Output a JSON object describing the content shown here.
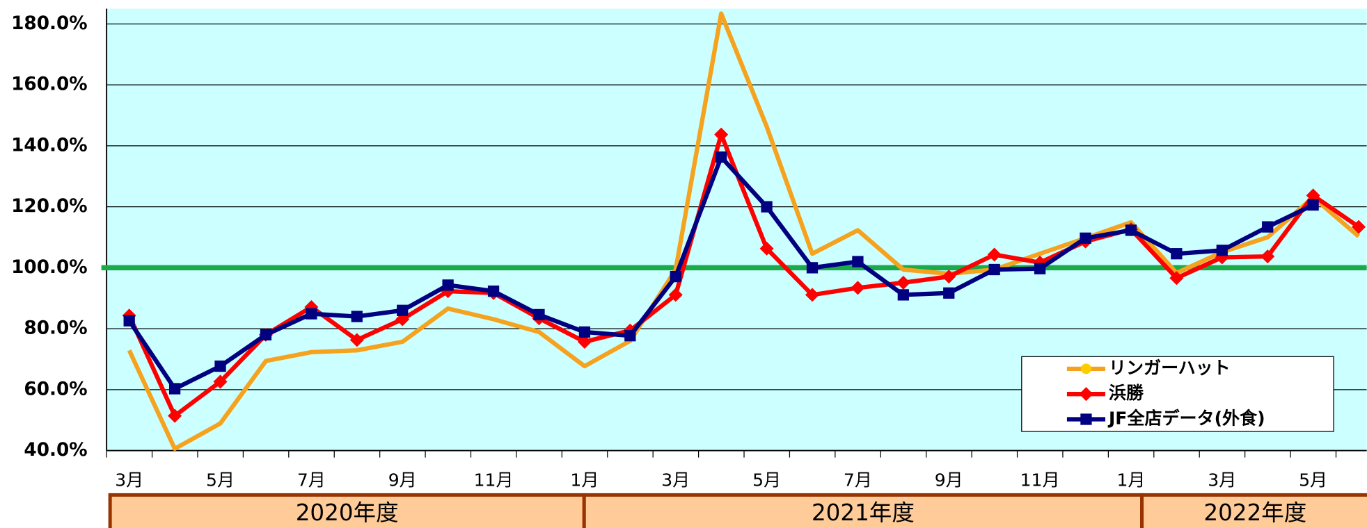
{
  "chart_data": {
    "type": "line",
    "categories": [
      "3月",
      null,
      "5月",
      null,
      "7月",
      null,
      "9月",
      null,
      "11月",
      null,
      "1月",
      null,
      "3月",
      null,
      "5月",
      null,
      "7月",
      null,
      "9月",
      null,
      "11月",
      null,
      "1月",
      null,
      "3月",
      null,
      "5月",
      null
    ],
    "series": [
      {
        "name": "リンガーハット",
        "color": "#f5a21e",
        "marker": "circle",
        "values": [
          72.9,
          40.6,
          48.9,
          69.4,
          72.3,
          72.9,
          75.7,
          86.6,
          83.1,
          78.9,
          67.7,
          76,
          99.4,
          183.4,
          146.3,
          104.6,
          112.3,
          99.4,
          98,
          99.4,
          104.6,
          109.7,
          114.9,
          98.3,
          105.1,
          110,
          123.1,
          110.3
        ]
      },
      {
        "name": "浜勝",
        "color": "#ff0000",
        "marker": "diamond",
        "values": [
          84.3,
          51.4,
          62.6,
          78,
          87.1,
          76.3,
          83.1,
          92.3,
          91.7,
          83.4,
          75.7,
          79.4,
          91.1,
          143.7,
          106.3,
          91.1,
          93.4,
          95.1,
          97.1,
          104.3,
          101.7,
          108.6,
          112.6,
          96.6,
          103.4,
          103.7,
          123.7,
          113.4
        ]
      },
      {
        "name": "JF全店データ(外食)",
        "color": "#000080",
        "marker": "square",
        "values": [
          82.6,
          60.3,
          67.7,
          78,
          84.9,
          84,
          86,
          94.3,
          92.3,
          84.6,
          78.9,
          77.7,
          97.1,
          136.3,
          120,
          100,
          102,
          91.1,
          91.7,
          99.4,
          99.7,
          109.7,
          112.3,
          104.6,
          105.7,
          113.4,
          120.6,
          null
        ]
      }
    ],
    "ylim": [
      40,
      185
    ],
    "yticks": [
      {
        "value": 40,
        "label": "40.0%"
      },
      {
        "value": 60,
        "label": "60.0%"
      },
      {
        "value": 80,
        "label": "80.0%"
      },
      {
        "value": 100,
        "label": "100.0%"
      },
      {
        "value": 120,
        "label": "120.0%"
      },
      {
        "value": 140,
        "label": "140.0%"
      },
      {
        "value": 160,
        "label": "160.0%"
      },
      {
        "value": 180,
        "label": "180.0%"
      }
    ],
    "grid": true,
    "reference_line": {
      "value": 100,
      "color": "#1aaa4a"
    },
    "plot_background": "#ccffff",
    "legend": "lower right",
    "fiscal_years": [
      "2020年度",
      "2021年度",
      "2022年度"
    ]
  }
}
